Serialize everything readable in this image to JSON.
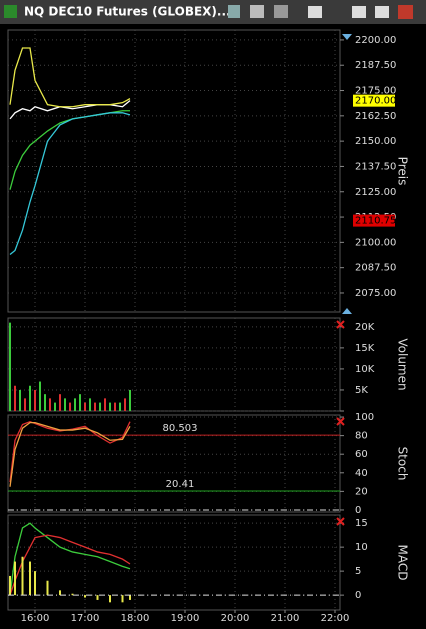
{
  "window": {
    "title": "NQ DEC10 Futures (GLOBEX)..."
  },
  "chart_data": [
    {
      "type": "line",
      "axis_label": "Preis",
      "x": [
        15.5,
        15.6,
        15.75,
        15.9,
        16,
        16.25,
        16.5,
        16.75,
        17,
        17.25,
        17.5,
        17.75,
        17.9
      ],
      "series": [
        {
          "color": "#ffffff",
          "values": [
            2161,
            2164,
            2166,
            2165,
            2167,
            2165,
            2167,
            2166,
            2167,
            2168,
            2168,
            2167,
            2170
          ]
        },
        {
          "color": "#e8e84a",
          "values": [
            2168,
            2185,
            2196,
            2196,
            2180,
            2168,
            2167,
            2167,
            2168,
            2168,
            2168,
            2169,
            2171
          ]
        },
        {
          "color": "#3ccc3c",
          "values": [
            2126,
            2135,
            2143,
            2148,
            2150,
            2155,
            2159,
            2161,
            2162,
            2163,
            2164,
            2165,
            2165
          ]
        },
        {
          "color": "#35c8d8",
          "values": [
            2094,
            2096,
            2106,
            2120,
            2128,
            2150,
            2158,
            2161,
            2162,
            2163,
            2164,
            2164,
            2163
          ]
        }
      ],
      "ylim": [
        2065.6,
        2204.9
      ],
      "yticks": [
        {
          "value": 2075,
          "label": "2075.00"
        },
        {
          "value": 2087.5,
          "label": "2087.50"
        },
        {
          "value": 2100,
          "label": "2100.00"
        },
        {
          "value": 2112.5,
          "label": "2112.50"
        },
        {
          "value": 2125,
          "label": "2125.00"
        },
        {
          "value": 2137.5,
          "label": "2137.50"
        },
        {
          "value": 2150,
          "label": "2150.00"
        },
        {
          "value": 2162.5,
          "label": "2162.50"
        },
        {
          "value": 2175,
          "label": "2175.00"
        },
        {
          "value": 2187.5,
          "label": "2187.50"
        },
        {
          "value": 2200,
          "label": "2200.00"
        }
      ],
      "price_labels": [
        {
          "value": 2170,
          "label": "2170.00",
          "color": "#ffff00",
          "text_color": "#000000"
        },
        {
          "value": 2110.75,
          "label": "2110.75",
          "color": "#e00000",
          "text_color": "#000000"
        }
      ],
      "grid": true
    },
    {
      "type": "bar",
      "axis_label": "Volumen",
      "x": [
        15.5,
        15.6,
        15.7,
        15.8,
        15.9,
        16,
        16.1,
        16.2,
        16.3,
        16.4,
        16.5,
        16.6,
        16.7,
        16.8,
        16.9,
        17,
        17.1,
        17.2,
        17.3,
        17.4,
        17.5,
        17.6,
        17.7,
        17.8,
        17.9
      ],
      "series": [
        {
          "values": [
            21000,
            6000,
            5000,
            3000,
            6000,
            5000,
            7000,
            4000,
            3000,
            2000,
            4000,
            3000,
            2000,
            3000,
            4000,
            2000,
            3000,
            2000,
            2000,
            3000,
            2000,
            2000,
            2000,
            3000,
            5000
          ],
          "bar_colors": [
            "#3ccc3c",
            "#e03030",
            "#3ccc3c",
            "#e03030",
            "#3ccc3c",
            "#e03030",
            "#3ccc3c",
            "#3ccc3c",
            "#e03030",
            "#3ccc3c",
            "#e03030",
            "#3ccc3c",
            "#e03030",
            "#3ccc3c",
            "#3ccc3c",
            "#e03030",
            "#3ccc3c",
            "#e03030",
            "#3ccc3c",
            "#e03030",
            "#3ccc3c",
            "#e03030",
            "#3ccc3c",
            "#e03030",
            "#3ccc3c"
          ]
        }
      ],
      "ylim": [
        0,
        22100
      ],
      "yticks": [
        {
          "value": 0,
          "label": ""
        },
        {
          "value": 5000,
          "label": "5K"
        },
        {
          "value": 10000,
          "label": "10K"
        },
        {
          "value": 15000,
          "label": "15K"
        },
        {
          "value": 20000,
          "label": "20K"
        }
      ],
      "grid": true
    },
    {
      "type": "line",
      "axis_label": "Stoch",
      "x": [
        15.5,
        15.6,
        15.75,
        15.9,
        16,
        16.25,
        16.5,
        16.75,
        17,
        17.25,
        17.5,
        17.75,
        17.9
      ],
      "series": [
        {
          "color": "#e03030",
          "values": [
            30,
            75,
            92,
            95,
            93,
            88,
            85,
            87,
            90,
            80,
            72,
            78,
            95
          ]
        },
        {
          "color": "#f0a040",
          "values": [
            25,
            65,
            88,
            94,
            94,
            90,
            86,
            86,
            88,
            83,
            75,
            76,
            90
          ]
        }
      ],
      "levels": [
        80.503,
        20.41
      ],
      "level_colors": [
        "#c02020",
        "#20a020"
      ],
      "ylim": [
        -2.2,
        102.2
      ],
      "yticks": [
        0,
        20,
        40,
        60,
        80,
        100
      ],
      "grid": true
    },
    {
      "type": "line",
      "axis_label": "MACD",
      "x": [
        15.5,
        15.6,
        15.75,
        15.9,
        16,
        16.25,
        16.5,
        16.75,
        17,
        17.25,
        17.5,
        17.75,
        17.9
      ],
      "series": [
        {
          "color": "#3ccc3c",
          "values": [
            0,
            8,
            14,
            15,
            14,
            12,
            10,
            9,
            8.5,
            8,
            7,
            6,
            5.5
          ]
        },
        {
          "color": "#e03030",
          "values": [
            0,
            3,
            7,
            10,
            12,
            12.5,
            12,
            11,
            10,
            9,
            8.5,
            7.5,
            6.5
          ]
        },
        {
          "color": "#e8e84a",
          "style": "bar",
          "values": [
            4,
            7,
            8,
            7,
            5,
            3,
            1,
            0.3,
            -0.5,
            -1,
            -1.5,
            -1.5,
            -1
          ]
        }
      ],
      "ylim": [
        -3.1,
        16.7
      ],
      "yticks": [
        0,
        5,
        10,
        15
      ],
      "xlim": [
        15.46,
        22.1
      ],
      "xticks": [
        {
          "value": 16,
          "label": "16:00"
        },
        {
          "value": 17,
          "label": "17:00"
        },
        {
          "value": 18,
          "label": "18:00"
        },
        {
          "value": 19,
          "label": "19:00"
        },
        {
          "value": 20,
          "label": "20:00"
        },
        {
          "value": 21,
          "label": "21:00"
        },
        {
          "value": 22,
          "label": "22:00"
        }
      ],
      "grid": true
    }
  ]
}
